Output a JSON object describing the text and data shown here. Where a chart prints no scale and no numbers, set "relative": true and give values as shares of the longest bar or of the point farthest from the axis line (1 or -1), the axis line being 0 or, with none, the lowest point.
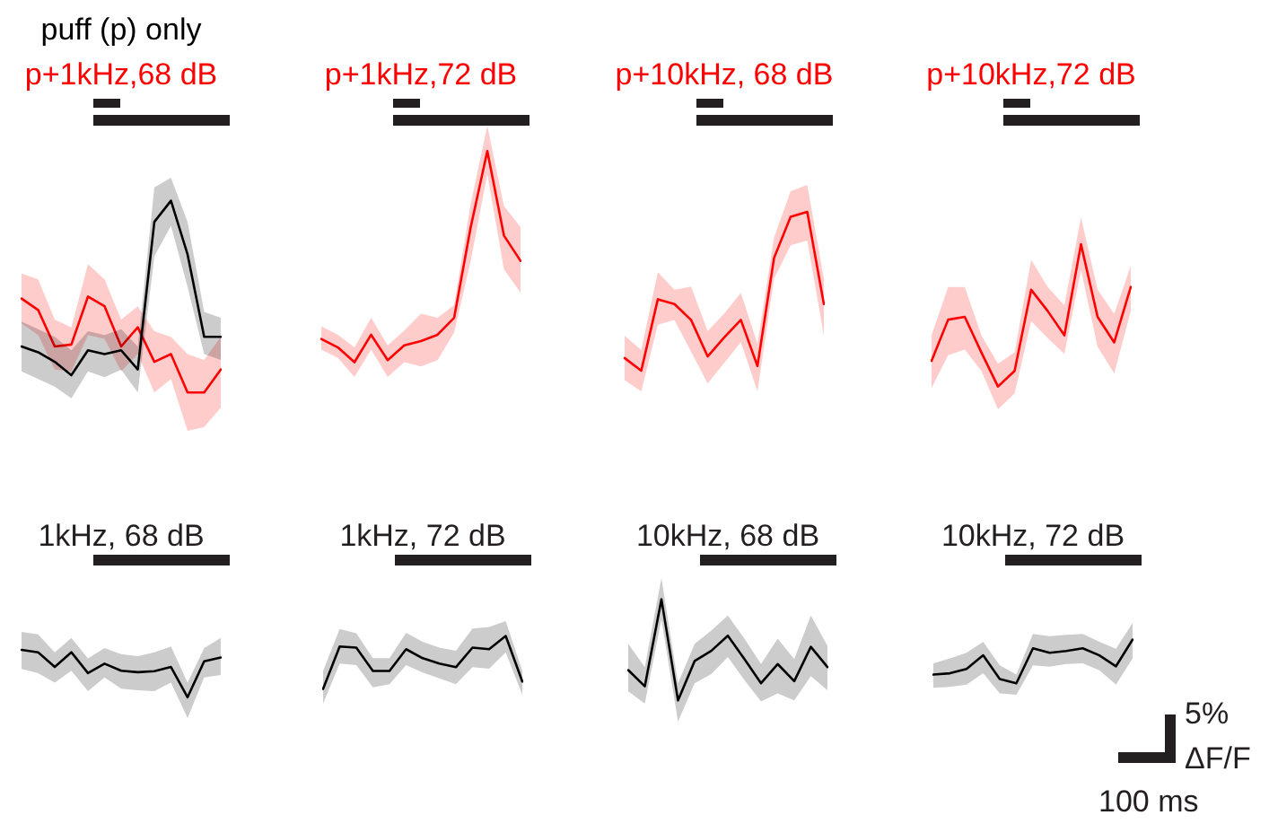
{
  "chart_data": [
    {
      "type": "line",
      "relative": true,
      "tick_labels": false,
      "categories": [
        null,
        null,
        null,
        null,
        null,
        null,
        null,
        null,
        null,
        null,
        null,
        null,
        null
      ],
      "series": [
        {
          "name": "puff (p) only",
          "color": "#000000",
          "values": [
            0.24,
            0.21,
            0.16,
            0.09,
            0.22,
            0.2,
            0.22,
            0.12,
            0.89,
            1,
            0.72,
            0.29,
            0.29
          ],
          "upper": [
            0.37,
            0.33,
            0.29,
            0.22,
            0.32,
            0.3,
            0.33,
            0.24,
            1.07,
            1.12,
            0.89,
            0.42,
            0.39
          ],
          "lower": [
            0.11,
            0.07,
            0.03,
            -0.03,
            0.11,
            0.08,
            0.12,
            0,
            0.71,
            0.87,
            0.55,
            0.2,
            0.17
          ]
        },
        {
          "name": "p+1kHz,68 dB",
          "color": "#ff0000",
          "values": [
            0.49,
            0.43,
            0.24,
            0.25,
            0.5,
            0.45,
            0.24,
            0.34,
            0.16,
            0.2,
            0,
            0,
            0.12
          ],
          "upper": [
            0.62,
            0.59,
            0.38,
            0.34,
            0.67,
            0.59,
            0.38,
            0.45,
            0.32,
            0.29,
            0.2,
            0.17,
            0.29
          ],
          "lower": [
            0.36,
            0.3,
            0.12,
            0.11,
            0.3,
            0.28,
            0.11,
            0.2,
            0,
            0.07,
            -0.2,
            -0.18,
            -0.08
          ]
        }
      ]
    },
    {
      "type": "line",
      "relative": true,
      "tick_labels": false,
      "categories": [
        null,
        null,
        null,
        null,
        null,
        null,
        null,
        null,
        null,
        null,
        null,
        null,
        null
      ],
      "series": [
        {
          "name": "p+1kHz,72 dB",
          "color": "#ff0000",
          "values": [
            0.11,
            0.07,
            0,
            0.13,
            0.01,
            0.08,
            0.1,
            0.13,
            0.21,
            0.64,
            1,
            0.6,
            0.48
          ],
          "upper": [
            0.17,
            0.13,
            0.07,
            0.21,
            0.08,
            0.15,
            0.23,
            0.21,
            0.27,
            0.75,
            1.12,
            0.74,
            0.64
          ],
          "lower": [
            0.06,
            0.02,
            -0.07,
            0.06,
            -0.07,
            0,
            -0.02,
            0.01,
            0.14,
            0.48,
            0.89,
            0.44,
            0.33
          ]
        }
      ]
    },
    {
      "type": "line",
      "relative": true,
      "tick_labels": false,
      "categories": [
        null,
        null,
        null,
        null,
        null,
        null,
        null,
        null,
        null,
        null,
        null,
        null,
        null
      ],
      "series": [
        {
          "name": "p+10kHz, 68 dB",
          "color": "#ff0000",
          "values": [
            0.08,
            0,
            0.45,
            0.42,
            0.32,
            0.09,
            0.21,
            0.32,
            0.03,
            0.71,
            0.97,
            1,
            0.42
          ],
          "upper": [
            0.22,
            0.13,
            0.62,
            0.51,
            0.53,
            0.25,
            0.36,
            0.49,
            0.17,
            0.84,
            1.13,
            1.17,
            0.58
          ],
          "lower": [
            -0.06,
            -0.13,
            0.29,
            0.32,
            0.12,
            -0.08,
            0.05,
            0.18,
            -0.13,
            0.58,
            0.79,
            0.82,
            0.22
          ]
        }
      ]
    },
    {
      "type": "line",
      "relative": true,
      "tick_labels": false,
      "categories": [
        null,
        null,
        null,
        null,
        null,
        null,
        null,
        null,
        null,
        null,
        null,
        null,
        null
      ],
      "series": [
        {
          "name": "p+10kHz,72 dB",
          "color": "#ff0000",
          "values": [
            0.18,
            0.47,
            0.49,
            0.24,
            0,
            0.11,
            0.68,
            0.53,
            0.36,
            1,
            0.49,
            0.31,
            0.7
          ],
          "upper": [
            0.36,
            0.7,
            0.7,
            0.36,
            0.16,
            0.24,
            0.89,
            0.7,
            0.57,
            1.19,
            0.68,
            0.51,
            0.85
          ],
          "lower": [
            -0.01,
            0.22,
            0.26,
            0.11,
            -0.16,
            -0.05,
            0.46,
            0.34,
            0.23,
            0.82,
            0.28,
            0.09,
            0.53
          ]
        }
      ]
    },
    {
      "type": "line",
      "relative": true,
      "title": "1kHz, 68 dB",
      "tick_labels": false,
      "categories": [
        null,
        null,
        null,
        null,
        null,
        null,
        null,
        null,
        null,
        null,
        null,
        null,
        null
      ],
      "series": [
        {
          "color": "#000000",
          "values": [
            1,
            0.95,
            0.64,
            0.95,
            0.51,
            0.71,
            0.56,
            0.53,
            0.55,
            0.64,
            0,
            0.76,
            0.84
          ],
          "upper": [
            1.38,
            1.33,
            0.95,
            1.25,
            0.82,
            1.04,
            0.91,
            0.87,
            0.95,
            1.07,
            0.31,
            1.04,
            1.25
          ],
          "lower": [
            0.6,
            0.51,
            0.31,
            0.56,
            0.13,
            0.42,
            0.18,
            0.15,
            0.13,
            0.31,
            -0.44,
            0.42,
            0.47
          ]
        }
      ]
    },
    {
      "type": "line",
      "relative": true,
      "title": "1kHz, 72 dB",
      "tick_labels": false,
      "categories": [
        null,
        null,
        null,
        null,
        null,
        null,
        null,
        null,
        null,
        null,
        null,
        null,
        null
      ],
      "series": [
        {
          "color": "#000000",
          "values": [
            0,
            0.8,
            0.78,
            0.34,
            0.34,
            0.75,
            0.58,
            0.48,
            0.41,
            0.78,
            0.75,
            1,
            0.14
          ],
          "upper": [
            0.34,
            1.13,
            1.05,
            0.58,
            0.58,
            1.06,
            0.89,
            0.78,
            0.72,
            1.14,
            1.17,
            1.28,
            0.34
          ],
          "lower": [
            -0.28,
            0.48,
            0.45,
            0.03,
            0.09,
            0.45,
            0.31,
            0.2,
            0.09,
            0.41,
            0.38,
            0.69,
            -0.11
          ]
        }
      ]
    },
    {
      "type": "line",
      "relative": true,
      "title": "10kHz, 68 dB",
      "tick_labels": false,
      "categories": [
        null,
        null,
        null,
        null,
        null,
        null,
        null,
        null,
        null,
        null,
        null,
        null,
        null
      ],
      "series": [
        {
          "color": "#000000",
          "values": [
            0.3,
            0.14,
            1,
            0,
            0.39,
            0.49,
            0.64,
            0.41,
            0.17,
            0.36,
            0.19,
            0.53,
            0.33
          ],
          "upper": [
            0.56,
            0.33,
            1.21,
            0.17,
            0.56,
            0.69,
            0.84,
            0.61,
            0.36,
            0.61,
            0.41,
            0.84,
            0.54
          ],
          "lower": [
            0.09,
            -0.03,
            0.8,
            -0.21,
            0.17,
            0.26,
            0.43,
            0.2,
            -0.01,
            0.07,
            0,
            0.24,
            0.1
          ]
        }
      ]
    },
    {
      "type": "line",
      "relative": true,
      "title": "10kHz, 72 dB",
      "tick_labels": false,
      "categories": [
        null,
        null,
        null,
        null,
        null,
        null,
        null,
        null,
        null,
        null,
        null,
        null,
        null
      ],
      "annotations": [
        "5%",
        "ΔF/F",
        "100 ms"
      ],
      "series": [
        {
          "color": "#000000",
          "values": [
            0.2,
            0.23,
            0.33,
            0.64,
            0.1,
            0,
            0.8,
            0.7,
            0.74,
            0.8,
            0.64,
            0.39,
            1
          ],
          "upper": [
            0.46,
            0.57,
            0.7,
            0.95,
            0.41,
            0.2,
            1.13,
            1.08,
            1.11,
            1.13,
            0.95,
            0.79,
            1.38
          ],
          "lower": [
            -0.1,
            -0.08,
            -0.03,
            0.23,
            -0.23,
            -0.26,
            0.41,
            0.38,
            0.44,
            0.46,
            0.3,
            -0.03,
            0.57
          ]
        }
      ]
    }
  ]
}
